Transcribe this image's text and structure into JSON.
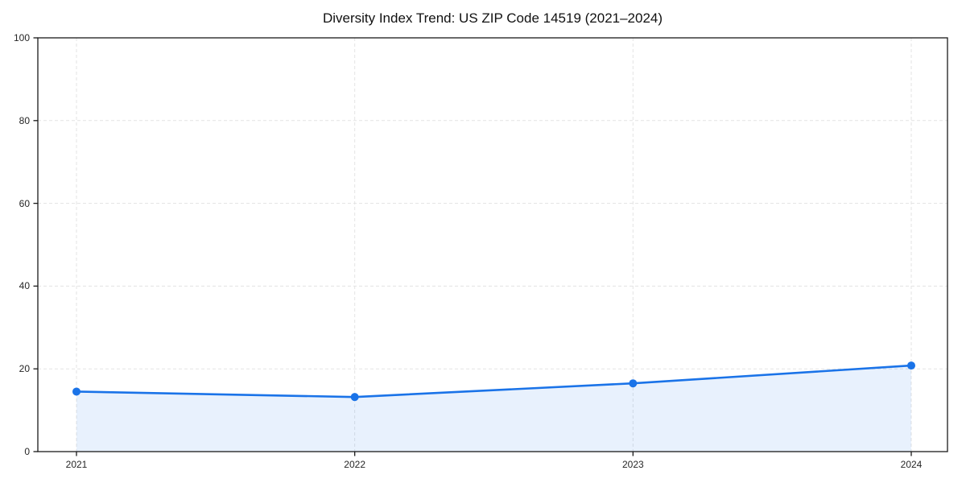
{
  "chart": {
    "title": "Diversity Index Trend: US ZIP Code 14519 (2021–2024)"
  },
  "chart_data": {
    "type": "area",
    "title": "Diversity Index Trend: US ZIP Code 14519 (2021–2024)",
    "categories": [
      "2021",
      "2022",
      "2023",
      "2024"
    ],
    "series": [
      {
        "name": "Diversity Index",
        "values": [
          14.5,
          13.2,
          16.5,
          20.8
        ]
      }
    ],
    "xlabel": "",
    "ylabel": "",
    "ylim": [
      0,
      100
    ],
    "yticks": [
      0,
      20,
      40,
      60,
      80,
      100
    ],
    "grid": true,
    "grid_style": "dashed",
    "legend": "none",
    "colors": {
      "line": "#1a73e8",
      "marker": "#1a73e8",
      "fill": "rgba(26,115,232,0.10)",
      "grid": "#e3e3e3",
      "spine": "#1a1a1a",
      "tick_label": "#262626",
      "title": "#111111",
      "background": "#ffffff"
    }
  }
}
